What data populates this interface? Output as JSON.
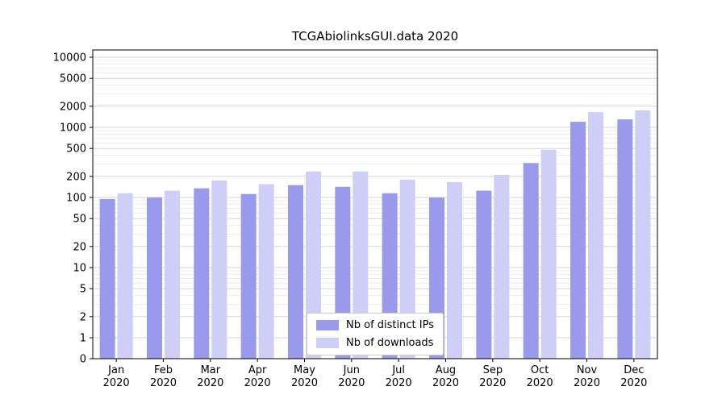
{
  "chart_data": {
    "type": "bar",
    "title": "TCGAbiolinksGUI.data 2020",
    "yscale": "symlog",
    "grid": true,
    "legend_position": "lower center",
    "xlabel": "",
    "ylabel": "",
    "ylim": [
      0,
      13000
    ],
    "yticks": [
      0,
      1,
      2,
      5,
      10,
      20,
      50,
      100,
      200,
      500,
      1000,
      2000,
      5000,
      10000
    ],
    "categories": [
      "Jan 2020",
      "Feb 2020",
      "Mar 2020",
      "Apr 2020",
      "May 2020",
      "Jun 2020",
      "Jul 2020",
      "Aug 2020",
      "Sep 2020",
      "Oct 2020",
      "Nov 2020",
      "Dec 2020"
    ],
    "series": [
      {
        "name": "Nb of distinct IPs",
        "color": "#9a9aed",
        "values": [
          95,
          100,
          135,
          112,
          150,
          142,
          115,
          100,
          125,
          310,
          1200,
          1300
        ]
      },
      {
        "name": "Nb of downloads",
        "color": "#cecef7",
        "values": [
          115,
          125,
          175,
          155,
          235,
          235,
          180,
          165,
          210,
          480,
          1650,
          1750
        ]
      }
    ]
  }
}
